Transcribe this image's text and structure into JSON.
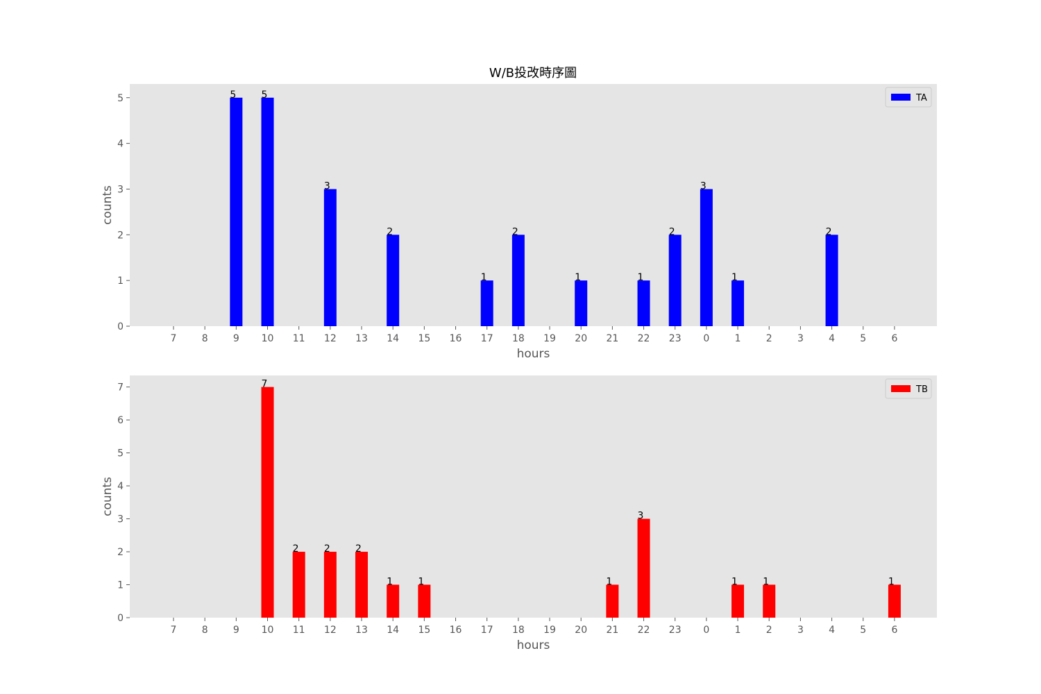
{
  "title": "W/B投改時序圖",
  "chart_data": [
    {
      "type": "bar",
      "categories": [
        "7",
        "8",
        "9",
        "10",
        "11",
        "12",
        "13",
        "14",
        "15",
        "16",
        "17",
        "18",
        "19",
        "20",
        "21",
        "22",
        "23",
        "0",
        "1",
        "2",
        "3",
        "4",
        "5",
        "6"
      ],
      "series": [
        {
          "name": "TA",
          "values": [
            0,
            0,
            5,
            5,
            0,
            3,
            0,
            2,
            0,
            0,
            1,
            2,
            0,
            1,
            0,
            1,
            2,
            3,
            1,
            0,
            0,
            2,
            0,
            0
          ],
          "color": "#0000ff"
        }
      ],
      "xlabel": "hours",
      "ylabel": "counts",
      "ylim": [
        0,
        5.3
      ],
      "yticks": [
        0,
        1,
        2,
        3,
        4,
        5
      ],
      "grid": false,
      "legend": "top-right",
      "background": "#e5e5e5"
    },
    {
      "type": "bar",
      "categories": [
        "7",
        "8",
        "9",
        "10",
        "11",
        "12",
        "13",
        "14",
        "15",
        "16",
        "17",
        "18",
        "19",
        "20",
        "21",
        "22",
        "23",
        "0",
        "1",
        "2",
        "3",
        "4",
        "5",
        "6"
      ],
      "series": [
        {
          "name": "TB",
          "values": [
            0,
            0,
            0,
            7,
            2,
            2,
            2,
            1,
            1,
            0,
            0,
            0,
            0,
            0,
            1,
            3,
            0,
            0,
            1,
            1,
            0,
            0,
            0,
            1
          ],
          "color": "#ff0000"
        }
      ],
      "xlabel": "hours",
      "ylabel": "counts",
      "ylim": [
        0,
        7.35
      ],
      "yticks": [
        0,
        1,
        2,
        3,
        4,
        5,
        6,
        7
      ],
      "grid": false,
      "legend": "top-right",
      "background": "#e5e5e5"
    }
  ]
}
